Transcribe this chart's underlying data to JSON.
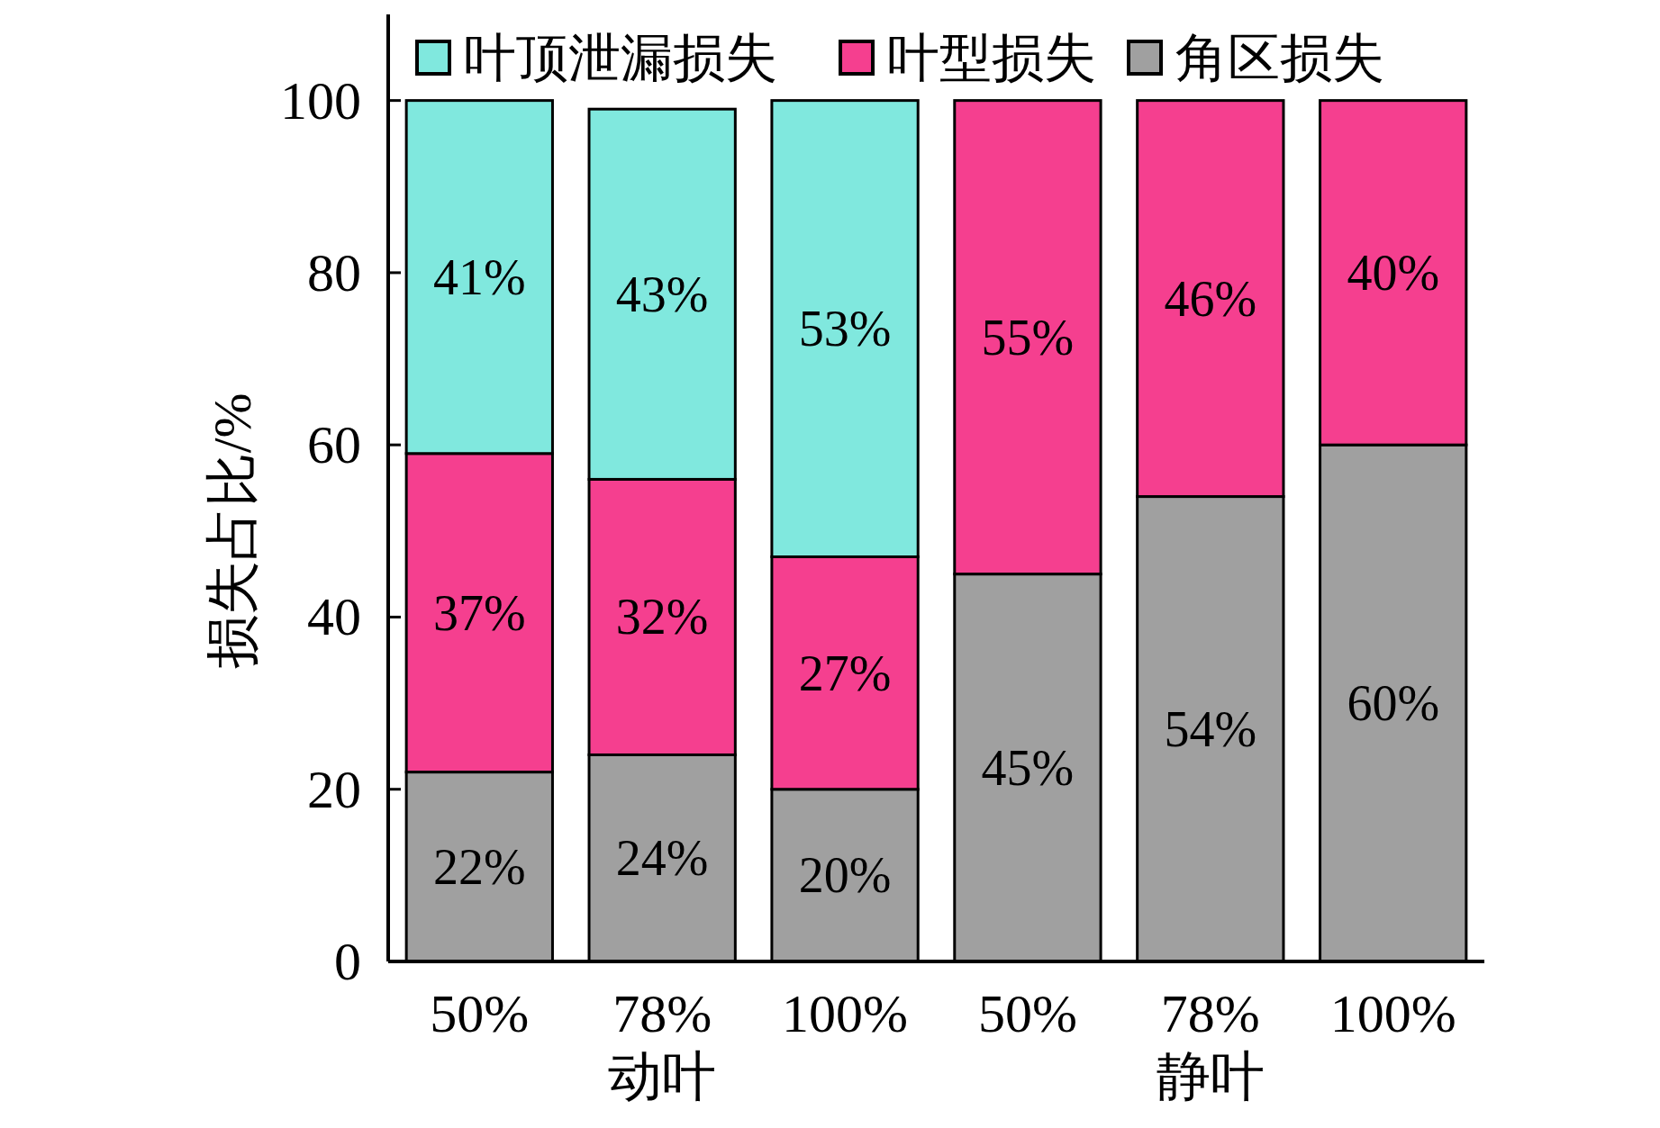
{
  "chart_data": {
    "type": "bar",
    "stacked": true,
    "ylabel": "损失占比/%",
    "categories": [
      "50%",
      "78%",
      "100%",
      "50%",
      "78%",
      "100%"
    ],
    "series": [
      {
        "name": "角区损失",
        "color": "#a0a0a0",
        "values": [
          22,
          24,
          20,
          45,
          54,
          60
        ],
        "value_labels": [
          "22%",
          "24%",
          "20%",
          "45%",
          "54%",
          "60%"
        ]
      },
      {
        "name": "叶型损失",
        "color": "#f53f8f",
        "values": [
          37,
          32,
          27,
          55,
          46,
          40
        ],
        "value_labels": [
          "37%",
          "32%",
          "27%",
          "55%",
          "46%",
          "40%"
        ]
      },
      {
        "name": "叶顶泄漏损失",
        "color": "#80e8de",
        "values": [
          41,
          43,
          53,
          null,
          null,
          null
        ],
        "value_labels": [
          "41%",
          "43%",
          "53%",
          null,
          null,
          null
        ]
      }
    ],
    "annotations": [
      "动叶",
      "静叶"
    ],
    "ylim": [
      0,
      110
    ],
    "yticks": [
      0,
      20,
      40,
      60,
      80,
      100
    ],
    "grid": false,
    "legend": "top"
  }
}
